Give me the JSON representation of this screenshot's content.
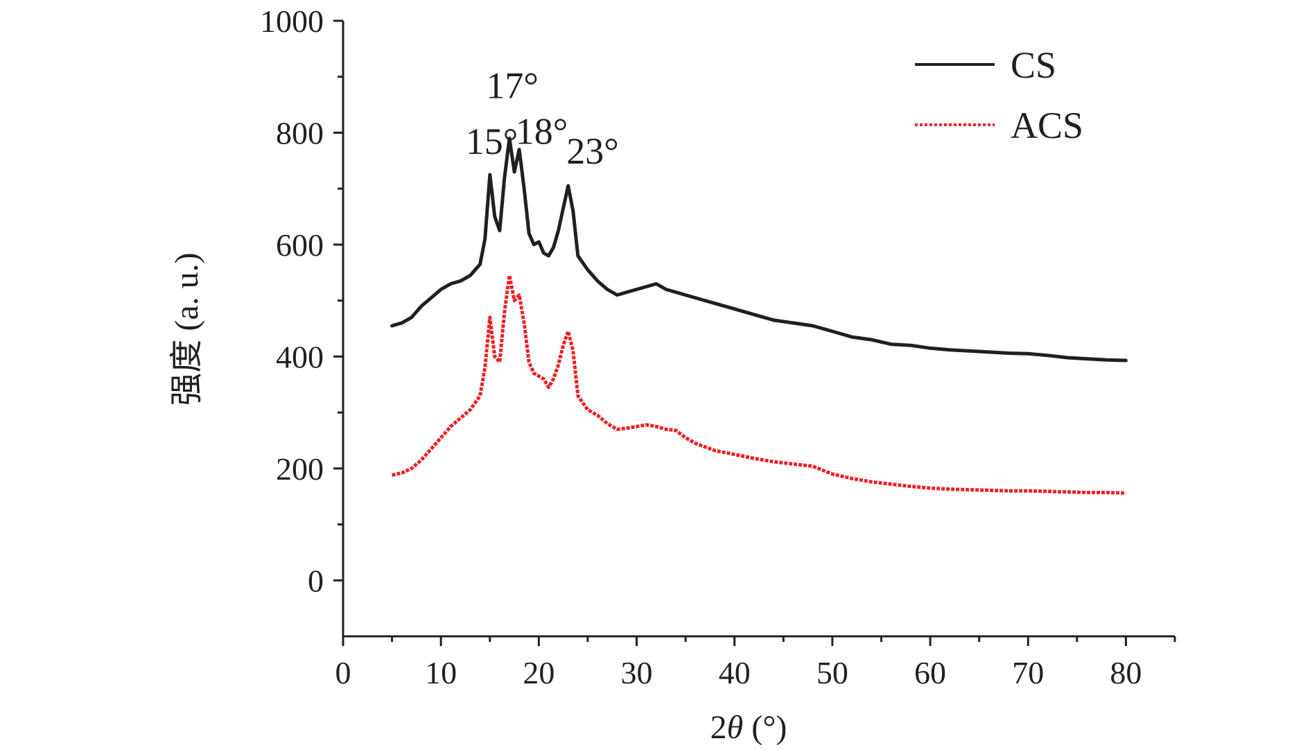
{
  "chart_data": {
    "type": "line",
    "xlabel_prefix": "2",
    "xlabel_theta": "θ",
    "xlabel_suffix": " (°)",
    "ylabel": "强度 (a. u.)",
    "xlim": [
      0,
      85
    ],
    "ylim": [
      -100,
      1000
    ],
    "x_ticks": [
      0,
      10,
      20,
      30,
      40,
      50,
      60,
      70,
      80
    ],
    "y_ticks": [
      0,
      200,
      400,
      600,
      800,
      1000
    ],
    "legend_position": "top-right",
    "grid": false,
    "series": [
      {
        "name": "CS",
        "color": "#231f20",
        "style": "solid",
        "x": [
          5,
          6,
          7,
          8,
          9,
          10,
          11,
          12,
          13,
          14,
          14.5,
          15,
          15.5,
          16,
          16.5,
          17,
          17.5,
          18,
          18.5,
          19,
          19.5,
          20,
          20.5,
          21,
          21.5,
          22,
          22.5,
          23,
          23.5,
          24,
          25,
          26,
          27,
          28,
          29,
          30,
          31,
          32,
          33,
          34,
          35,
          36,
          38,
          40,
          42,
          44,
          46,
          48,
          50,
          52,
          54,
          56,
          58,
          60,
          62,
          64,
          66,
          68,
          70,
          72,
          74,
          76,
          78,
          80
        ],
        "y": [
          455,
          460,
          470,
          490,
          505,
          520,
          530,
          535,
          545,
          565,
          610,
          725,
          650,
          625,
          720,
          790,
          730,
          770,
          700,
          620,
          600,
          605,
          585,
          580,
          595,
          625,
          665,
          705,
          660,
          580,
          555,
          535,
          520,
          510,
          515,
          520,
          525,
          530,
          520,
          515,
          510,
          505,
          495,
          485,
          475,
          465,
          460,
          455,
          445,
          435,
          430,
          422,
          420,
          415,
          412,
          410,
          408,
          406,
          405,
          402,
          398,
          396,
          394,
          393
        ]
      },
      {
        "name": "ACS",
        "color": "#ed2024",
        "style": "dotted",
        "x": [
          5,
          6,
          7,
          8,
          9,
          10,
          11,
          12,
          13,
          14,
          14.5,
          15,
          15.5,
          16,
          16.5,
          17,
          17.5,
          18,
          18.5,
          19,
          19.5,
          20,
          20.5,
          21,
          21.5,
          22,
          22.5,
          23,
          23.5,
          24,
          25,
          26,
          27,
          28,
          29,
          30,
          31,
          32,
          33,
          34,
          35,
          36,
          38,
          40,
          42,
          44,
          46,
          48,
          50,
          52,
          54,
          56,
          58,
          60,
          62,
          64,
          66,
          68,
          70,
          72,
          74,
          76,
          78,
          80
        ],
        "y": [
          188,
          192,
          200,
          215,
          235,
          255,
          275,
          290,
          305,
          330,
          380,
          470,
          400,
          390,
          480,
          545,
          500,
          510,
          460,
          390,
          370,
          365,
          360,
          345,
          360,
          385,
          420,
          445,
          410,
          330,
          305,
          295,
          280,
          270,
          272,
          275,
          278,
          275,
          270,
          268,
          255,
          245,
          232,
          225,
          218,
          212,
          208,
          204,
          190,
          182,
          176,
          172,
          168,
          165,
          163,
          162,
          161,
          160,
          160,
          159,
          158,
          157,
          157,
          156
        ]
      }
    ],
    "annotations": [
      {
        "text": "15°",
        "x": 15.2,
        "y": 762
      },
      {
        "text": "17°",
        "x": 17.3,
        "y": 862
      },
      {
        "text": "18°",
        "x": 20.3,
        "y": 780
      },
      {
        "text": "23°",
        "x": 25.5,
        "y": 745
      }
    ]
  }
}
